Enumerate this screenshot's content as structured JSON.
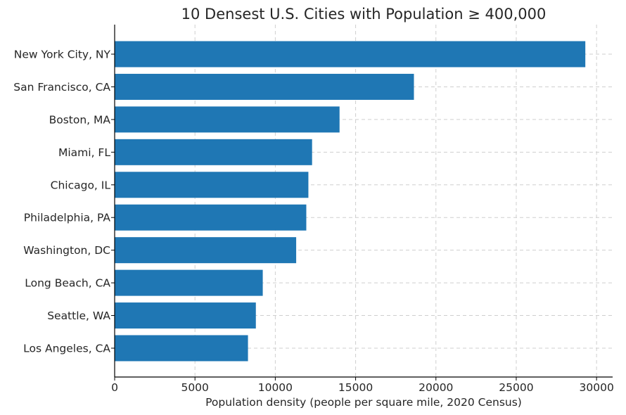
{
  "chart_data": {
    "type": "bar",
    "orientation": "horizontal",
    "title": "10 Densest U.S. Cities with Population ≥ 400,000",
    "xlabel": "Population density (people per square mile, 2020 Census)",
    "ylabel": "",
    "categories": [
      "New York City, NY",
      "San Francisco, CA",
      "Boston, MA",
      "Miami, FL",
      "Chicago, IL",
      "Philadelphia, PA",
      "Washington, DC",
      "Long Beach, CA",
      "Seattle, WA",
      "Los Angeles, CA"
    ],
    "values": [
      29300,
      18630,
      14000,
      12290,
      12060,
      11930,
      11300,
      9220,
      8790,
      8300
    ],
    "xlim": [
      0,
      31000
    ],
    "xticks": [
      0,
      5000,
      10000,
      15000,
      20000,
      25000,
      30000
    ],
    "grid": true,
    "bar_color": "#1f77b4"
  }
}
